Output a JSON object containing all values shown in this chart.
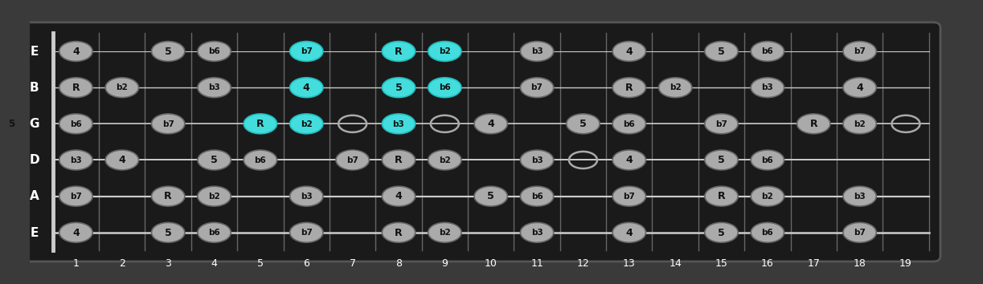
{
  "num_frets": 19,
  "num_strings": 6,
  "string_names": [
    "E",
    "B",
    "G",
    "D",
    "A",
    "E"
  ],
  "bg_color": "#3a3a3a",
  "fretboard_color": "#1a1a1a",
  "string_color": "#cccccc",
  "note_fill_normal": "#aaaaaa",
  "note_fill_highlight": "#44dddd",
  "note_text_color": "#111111",
  "open_circle_color": "#aaaaaa",
  "notes": [
    {
      "string": 0,
      "fret": 1,
      "label": "4",
      "highlight": false
    },
    {
      "string": 0,
      "fret": 3,
      "label": "5",
      "highlight": false
    },
    {
      "string": 0,
      "fret": 4,
      "label": "b6",
      "highlight": false
    },
    {
      "string": 0,
      "fret": 6,
      "label": "b7",
      "highlight": true
    },
    {
      "string": 0,
      "fret": 8,
      "label": "R",
      "highlight": true
    },
    {
      "string": 0,
      "fret": 9,
      "label": "b2",
      "highlight": true
    },
    {
      "string": 0,
      "fret": 11,
      "label": "b3",
      "highlight": false
    },
    {
      "string": 0,
      "fret": 13,
      "label": "4",
      "highlight": false
    },
    {
      "string": 0,
      "fret": 15,
      "label": "5",
      "highlight": false
    },
    {
      "string": 0,
      "fret": 16,
      "label": "b6",
      "highlight": false
    },
    {
      "string": 0,
      "fret": 18,
      "label": "b7",
      "highlight": false
    },
    {
      "string": 1,
      "fret": 1,
      "label": "R",
      "highlight": false
    },
    {
      "string": 1,
      "fret": 2,
      "label": "b2",
      "highlight": false
    },
    {
      "string": 1,
      "fret": 4,
      "label": "b3",
      "highlight": false
    },
    {
      "string": 1,
      "fret": 6,
      "label": "4",
      "highlight": true
    },
    {
      "string": 1,
      "fret": 8,
      "label": "5",
      "highlight": true
    },
    {
      "string": 1,
      "fret": 9,
      "label": "b6",
      "highlight": true
    },
    {
      "string": 1,
      "fret": 11,
      "label": "b7",
      "highlight": false
    },
    {
      "string": 1,
      "fret": 13,
      "label": "R",
      "highlight": false
    },
    {
      "string": 1,
      "fret": 14,
      "label": "b2",
      "highlight": false
    },
    {
      "string": 1,
      "fret": 16,
      "label": "b3",
      "highlight": false
    },
    {
      "string": 1,
      "fret": 18,
      "label": "4",
      "highlight": false
    },
    {
      "string": 2,
      "fret": 1,
      "label": "b6",
      "highlight": false
    },
    {
      "string": 2,
      "fret": 3,
      "label": "b7",
      "highlight": false
    },
    {
      "string": 2,
      "fret": 5,
      "label": "R",
      "highlight": true
    },
    {
      "string": 2,
      "fret": 6,
      "label": "b2",
      "highlight": true
    },
    {
      "string": 2,
      "fret": 8,
      "label": "b3",
      "highlight": true
    },
    {
      "string": 2,
      "fret": 10,
      "label": "4",
      "highlight": false
    },
    {
      "string": 2,
      "fret": 12,
      "label": "5",
      "highlight": false
    },
    {
      "string": 2,
      "fret": 13,
      "label": "b6",
      "highlight": false
    },
    {
      "string": 2,
      "fret": 15,
      "label": "b7",
      "highlight": false
    },
    {
      "string": 2,
      "fret": 17,
      "label": "R",
      "highlight": false
    },
    {
      "string": 2,
      "fret": 18,
      "label": "b2",
      "highlight": false
    },
    {
      "string": 3,
      "fret": 1,
      "label": "b3",
      "highlight": false
    },
    {
      "string": 3,
      "fret": 2,
      "label": "4",
      "highlight": false
    },
    {
      "string": 3,
      "fret": 4,
      "label": "5",
      "highlight": false
    },
    {
      "string": 3,
      "fret": 5,
      "label": "b6",
      "highlight": false
    },
    {
      "string": 3,
      "fret": 7,
      "label": "b7",
      "highlight": false
    },
    {
      "string": 3,
      "fret": 8,
      "label": "R",
      "highlight": false
    },
    {
      "string": 3,
      "fret": 9,
      "label": "b2",
      "highlight": false
    },
    {
      "string": 3,
      "fret": 11,
      "label": "b3",
      "highlight": false
    },
    {
      "string": 3,
      "fret": 13,
      "label": "4",
      "highlight": false
    },
    {
      "string": 3,
      "fret": 15,
      "label": "5",
      "highlight": false
    },
    {
      "string": 3,
      "fret": 16,
      "label": "b6",
      "highlight": false
    },
    {
      "string": 4,
      "fret": 1,
      "label": "b7",
      "highlight": false
    },
    {
      "string": 4,
      "fret": 3,
      "label": "R",
      "highlight": false
    },
    {
      "string": 4,
      "fret": 4,
      "label": "b2",
      "highlight": false
    },
    {
      "string": 4,
      "fret": 6,
      "label": "b3",
      "highlight": false
    },
    {
      "string": 4,
      "fret": 8,
      "label": "4",
      "highlight": false
    },
    {
      "string": 4,
      "fret": 10,
      "label": "5",
      "highlight": false
    },
    {
      "string": 4,
      "fret": 11,
      "label": "b6",
      "highlight": false
    },
    {
      "string": 4,
      "fret": 13,
      "label": "b7",
      "highlight": false
    },
    {
      "string": 4,
      "fret": 15,
      "label": "R",
      "highlight": false
    },
    {
      "string": 4,
      "fret": 16,
      "label": "b2",
      "highlight": false
    },
    {
      "string": 4,
      "fret": 18,
      "label": "b3",
      "highlight": false
    },
    {
      "string": 5,
      "fret": 1,
      "label": "4",
      "highlight": false
    },
    {
      "string": 5,
      "fret": 3,
      "label": "5",
      "highlight": false
    },
    {
      "string": 5,
      "fret": 4,
      "label": "b6",
      "highlight": false
    },
    {
      "string": 5,
      "fret": 6,
      "label": "b7",
      "highlight": false
    },
    {
      "string": 5,
      "fret": 8,
      "label": "R",
      "highlight": false
    },
    {
      "string": 5,
      "fret": 9,
      "label": "b2",
      "highlight": false
    },
    {
      "string": 5,
      "fret": 11,
      "label": "b3",
      "highlight": false
    },
    {
      "string": 5,
      "fret": 13,
      "label": "4",
      "highlight": false
    },
    {
      "string": 5,
      "fret": 15,
      "label": "5",
      "highlight": false
    },
    {
      "string": 5,
      "fret": 16,
      "label": "b6",
      "highlight": false
    },
    {
      "string": 5,
      "fret": 18,
      "label": "b7",
      "highlight": false
    }
  ],
  "open_circles": [
    {
      "string": 2,
      "fret": 7
    },
    {
      "string": 2,
      "fret": 9
    },
    {
      "string": 3,
      "fret": 7
    },
    {
      "string": 3,
      "fret": 12
    },
    {
      "string": 2,
      "fret": 19
    }
  ],
  "g_string_open": {
    "label": "5",
    "highlight": false
  }
}
